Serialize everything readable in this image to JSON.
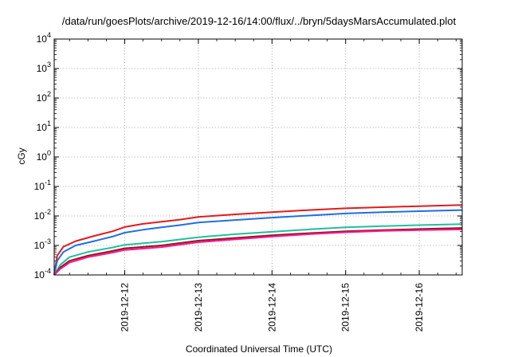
{
  "chart_data": {
    "type": "line",
    "title": "/data/run/goesPlots/archive/2019-12-16/14:00/flux/../bryn/5daysMarsAccumulated.plot",
    "xlabel": "Coordinated Universal Time (UTC)",
    "ylabel": "cGy",
    "yscale": "log",
    "ylim": [
      0.0001,
      10000
    ],
    "xlim": [
      "2019-12-11T01:00",
      "2019-12-16T14:00"
    ],
    "grid": true,
    "legend": "none",
    "x_ticks": [
      "2019-12-12",
      "2019-12-13",
      "2019-12-14",
      "2019-12-15",
      "2019-12-16"
    ],
    "y_ticks": [
      {
        "base": "10",
        "exp": "-4",
        "value": 0.0001
      },
      {
        "base": "10",
        "exp": "-3",
        "value": 0.001
      },
      {
        "base": "10",
        "exp": "-2",
        "value": 0.01
      },
      {
        "base": "10",
        "exp": "-1",
        "value": 0.1
      },
      {
        "base": "10",
        "exp": "0",
        "value": 1
      },
      {
        "base": "10",
        "exp": "1",
        "value": 10
      },
      {
        "base": "10",
        "exp": "2",
        "value": 100
      },
      {
        "base": "10",
        "exp": "3",
        "value": 1000
      },
      {
        "base": "10",
        "exp": "4",
        "value": 10000
      }
    ],
    "series": [
      {
        "color": "#e41a1c",
        "points": [
          [
            "2019-12-11T01:00",
            0.0001
          ],
          [
            "2019-12-11T02:00",
            0.00045
          ],
          [
            "2019-12-11T04:00",
            0.0009
          ],
          [
            "2019-12-11T08:00",
            0.0014
          ],
          [
            "2019-12-11T14:00",
            0.0021
          ],
          [
            "2019-12-11T20:00",
            0.003
          ],
          [
            "2019-12-12T00:00",
            0.0042
          ],
          [
            "2019-12-12T06:00",
            0.0054
          ],
          [
            "2019-12-12T12:00",
            0.0064
          ],
          [
            "2019-12-12T18:00",
            0.0075
          ],
          [
            "2019-12-13T00:00",
            0.0093
          ],
          [
            "2019-12-13T12:00",
            0.0113
          ],
          [
            "2019-12-14T00:00",
            0.0135
          ],
          [
            "2019-12-14T12:00",
            0.0158
          ],
          [
            "2019-12-15T00:00",
            0.0182
          ],
          [
            "2019-12-15T12:00",
            0.0198
          ],
          [
            "2019-12-16T00:00",
            0.0215
          ],
          [
            "2019-12-16T14:00",
            0.0236
          ]
        ]
      },
      {
        "color": "#1f6fe0",
        "points": [
          [
            "2019-12-11T01:00",
            0.0001
          ],
          [
            "2019-12-11T02:00",
            0.0003
          ],
          [
            "2019-12-11T04:00",
            0.0006
          ],
          [
            "2019-12-11T08:00",
            0.001
          ],
          [
            "2019-12-11T14:00",
            0.0014
          ],
          [
            "2019-12-11T20:00",
            0.002
          ],
          [
            "2019-12-12T00:00",
            0.0027
          ],
          [
            "2019-12-12T06:00",
            0.0034
          ],
          [
            "2019-12-12T12:00",
            0.0041
          ],
          [
            "2019-12-12T18:00",
            0.0049
          ],
          [
            "2019-12-13T00:00",
            0.006
          ],
          [
            "2019-12-13T12:00",
            0.0073
          ],
          [
            "2019-12-14T00:00",
            0.0088
          ],
          [
            "2019-12-14T12:00",
            0.0103
          ],
          [
            "2019-12-15T00:00",
            0.0121
          ],
          [
            "2019-12-15T12:00",
            0.0134
          ],
          [
            "2019-12-16T00:00",
            0.0145
          ],
          [
            "2019-12-16T14:00",
            0.0158
          ]
        ]
      },
      {
        "color": "#1fc0a0",
        "points": [
          [
            "2019-12-11T01:00",
            0.0001
          ],
          [
            "2019-12-11T03:00",
            0.00022
          ],
          [
            "2019-12-11T06:00",
            0.0004
          ],
          [
            "2019-12-11T12:00",
            0.0006
          ],
          [
            "2019-12-11T20:00",
            0.00085
          ],
          [
            "2019-12-12T00:00",
            0.00105
          ],
          [
            "2019-12-12T12:00",
            0.00135
          ],
          [
            "2019-12-13T00:00",
            0.0019
          ],
          [
            "2019-12-13T12:00",
            0.0024
          ],
          [
            "2019-12-14T00:00",
            0.0029
          ],
          [
            "2019-12-14T12:00",
            0.0035
          ],
          [
            "2019-12-15T00:00",
            0.0041
          ],
          [
            "2019-12-15T12:00",
            0.0045
          ],
          [
            "2019-12-16T00:00",
            0.0049
          ],
          [
            "2019-12-16T14:00",
            0.0053
          ]
        ]
      },
      {
        "color": "#8b1a1a",
        "points": [
          [
            "2019-12-11T01:00",
            0.0001
          ],
          [
            "2019-12-11T03:00",
            0.00018
          ],
          [
            "2019-12-11T06:00",
            0.0003
          ],
          [
            "2019-12-11T12:00",
            0.00045
          ],
          [
            "2019-12-11T20:00",
            0.00065
          ],
          [
            "2019-12-12T00:00",
            0.0008
          ],
          [
            "2019-12-12T12:00",
            0.001
          ],
          [
            "2019-12-13T00:00",
            0.00145
          ],
          [
            "2019-12-13T12:00",
            0.0018
          ],
          [
            "2019-12-14T00:00",
            0.0022
          ],
          [
            "2019-12-14T12:00",
            0.0026
          ],
          [
            "2019-12-15T00:00",
            0.003
          ],
          [
            "2019-12-15T12:00",
            0.0033
          ],
          [
            "2019-12-16T00:00",
            0.0036
          ],
          [
            "2019-12-16T14:00",
            0.0039
          ]
        ]
      },
      {
        "color": "#ff1493",
        "points": [
          [
            "2019-12-11T01:00",
            0.0001
          ],
          [
            "2019-12-11T03:00",
            0.00016
          ],
          [
            "2019-12-11T06:00",
            0.00026
          ],
          [
            "2019-12-11T12:00",
            0.0004
          ],
          [
            "2019-12-11T20:00",
            0.00057
          ],
          [
            "2019-12-12T00:00",
            0.0007
          ],
          [
            "2019-12-12T12:00",
            0.00088
          ],
          [
            "2019-12-13T00:00",
            0.00128
          ],
          [
            "2019-12-13T12:00",
            0.0016
          ],
          [
            "2019-12-14T00:00",
            0.002
          ],
          [
            "2019-12-14T12:00",
            0.0024
          ],
          [
            "2019-12-15T00:00",
            0.0028
          ],
          [
            "2019-12-15T12:00",
            0.0031
          ],
          [
            "2019-12-16T00:00",
            0.0033
          ],
          [
            "2019-12-16T14:00",
            0.0035
          ]
        ]
      }
    ]
  }
}
